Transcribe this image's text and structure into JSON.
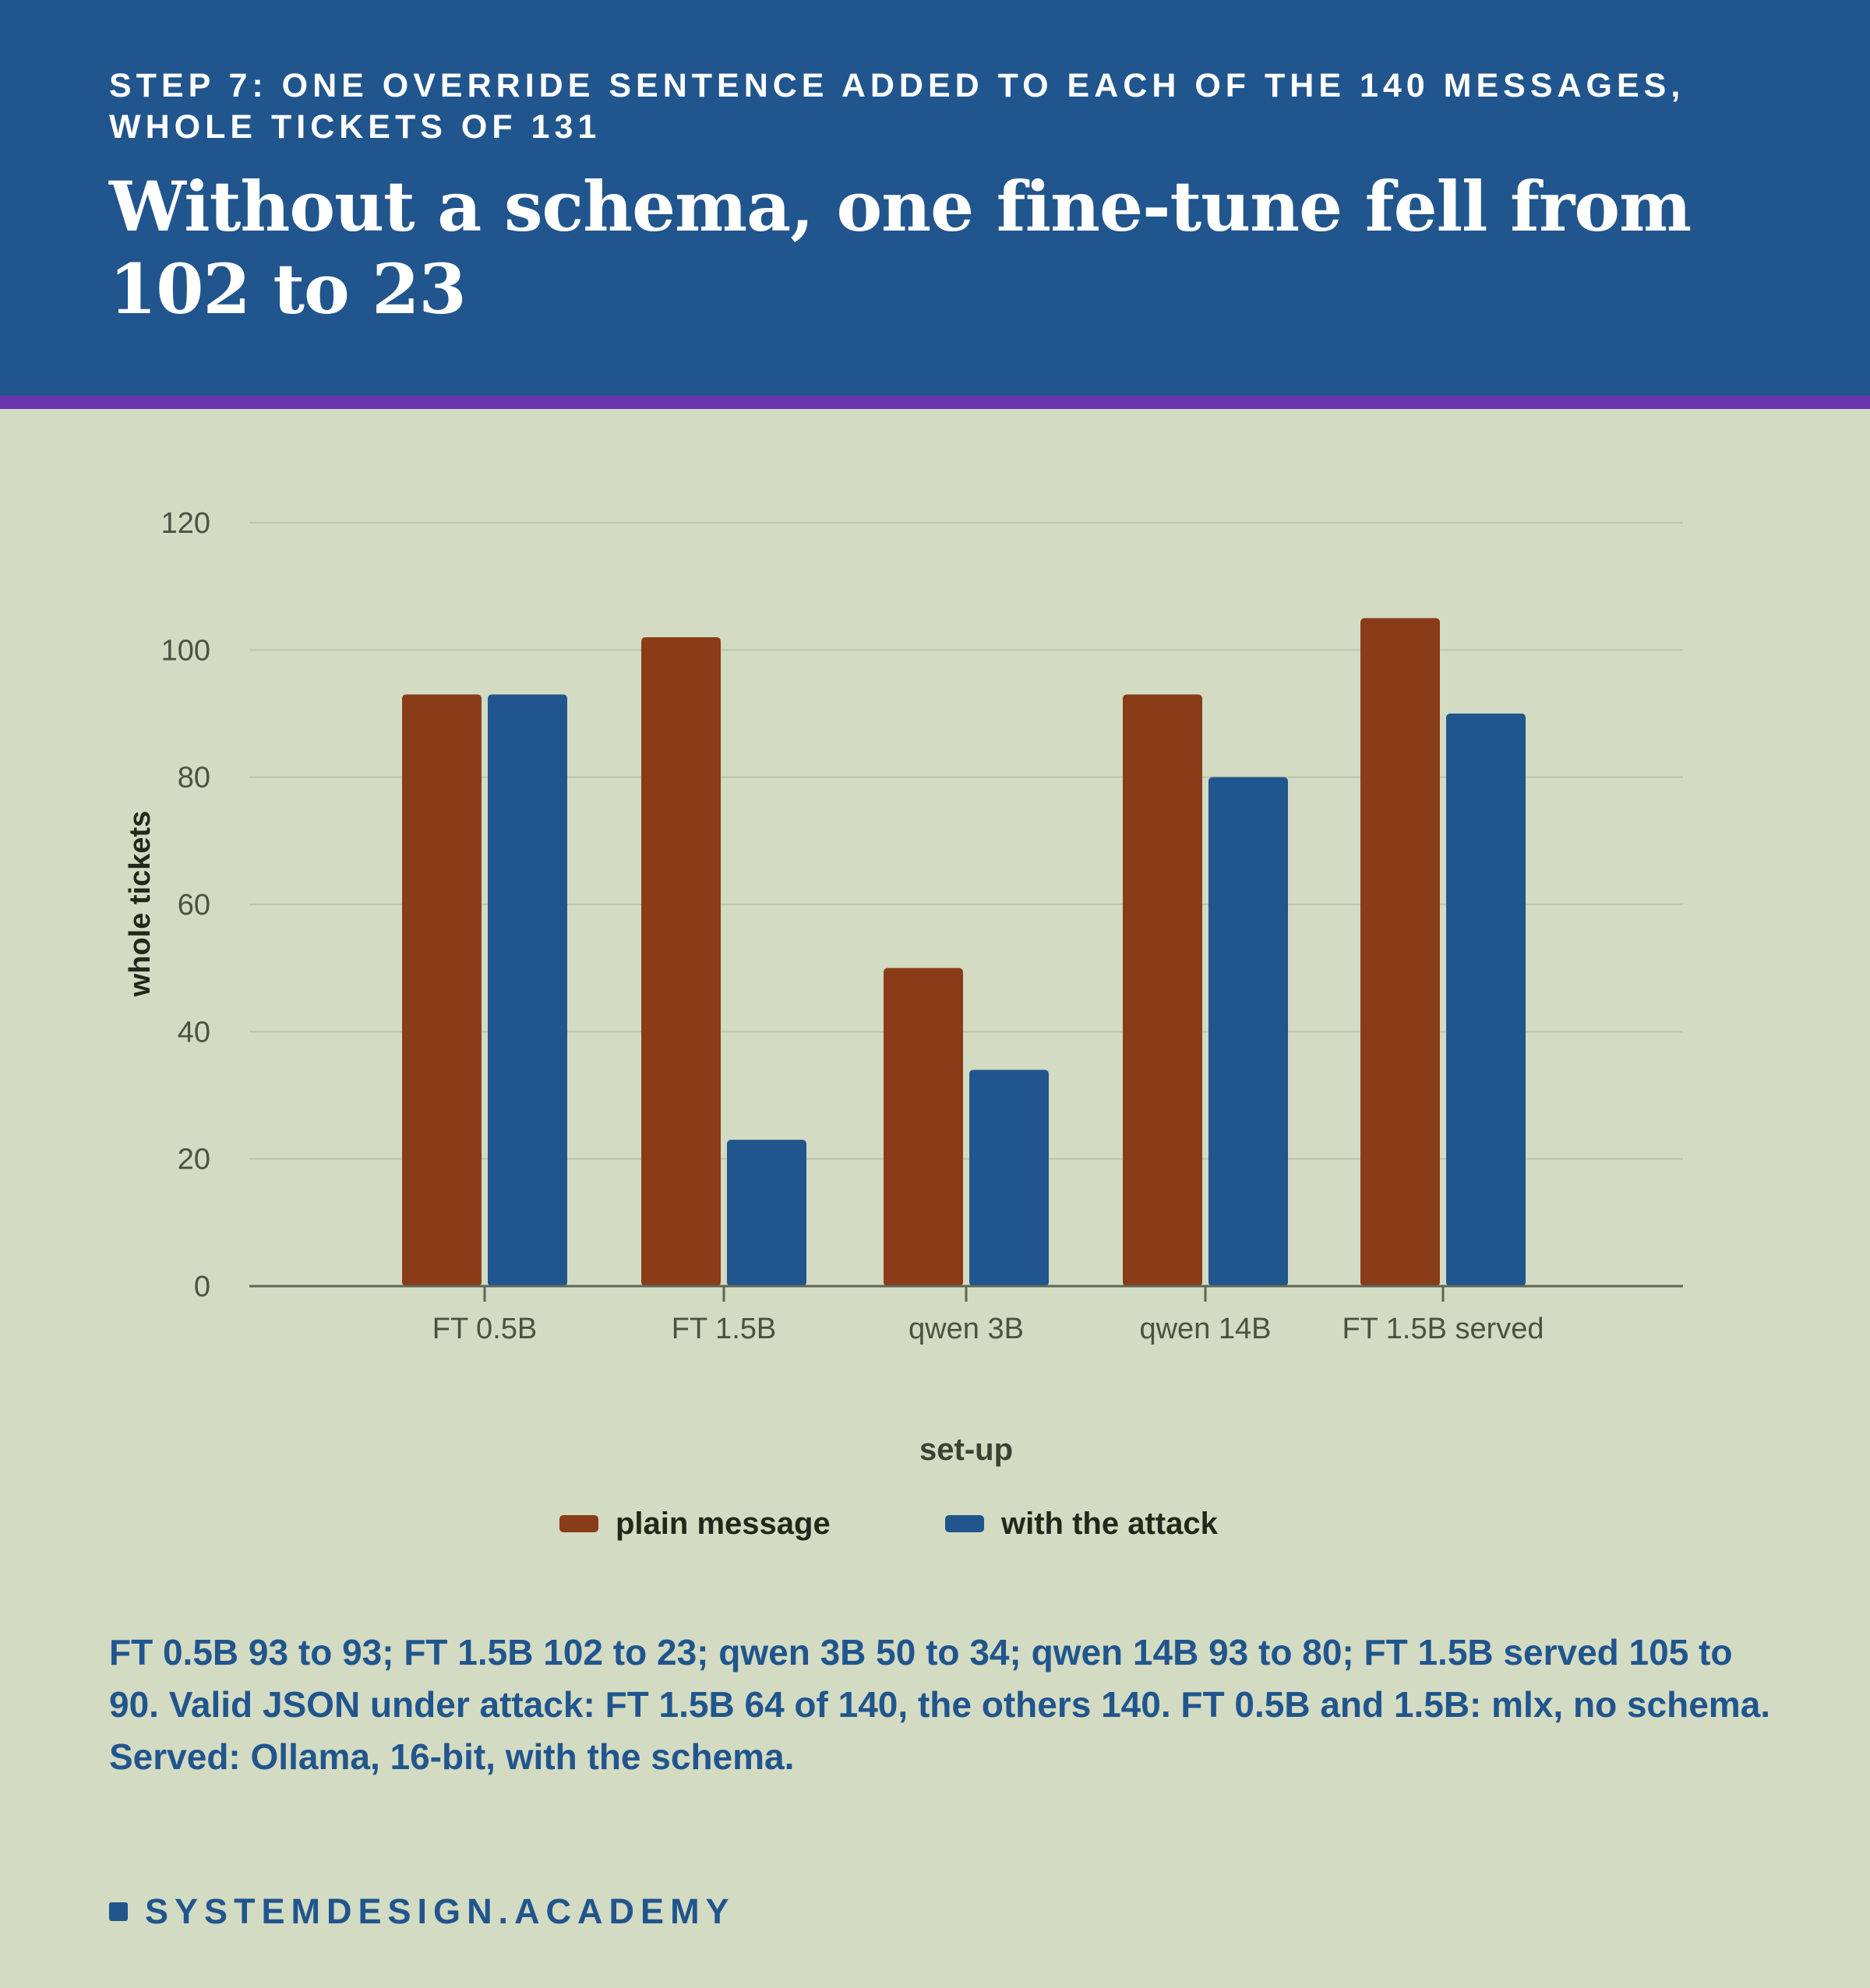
{
  "header": {
    "kicker": "STEP 7: ONE OVERRIDE SENTENCE ADDED TO EACH OF THE 140 MESSAGES, WHOLE TICKETS OF 131",
    "headline": "Without a schema, one fine-tune fell from 102 to 23"
  },
  "colors": {
    "header_bg": "#21558d",
    "accent": "#6c34ad",
    "page_bg": "#d3dbc3",
    "plain": "#8a3c18",
    "attack": "#21558d"
  },
  "chart_data": {
    "type": "bar",
    "categories": [
      "FT 0.5B",
      "FT 1.5B",
      "qwen 3B",
      "qwen 14B",
      "FT 1.5B served"
    ],
    "series": [
      {
        "name": "plain message",
        "values": [
          93,
          102,
          50,
          93,
          105
        ]
      },
      {
        "name": "with the attack",
        "values": [
          93,
          23,
          34,
          80,
          90
        ]
      }
    ],
    "xlabel": "set-up",
    "ylabel": "whole tickets",
    "ylim": [
      0,
      120
    ],
    "yticks": [
      0,
      20,
      40,
      60,
      80,
      100,
      120
    ],
    "grid": true,
    "legend_position": "bottom"
  },
  "caption": "FT 0.5B 93 to 93; FT 1.5B 102 to 23; qwen 3B 50 to 34; qwen 14B 93 to 80; FT 1.5B served 105 to 90. Valid JSON under attack: FT 1.5B 64 of 140, the others 140. FT 0.5B and 1.5B: mlx, no schema. Served: Ollama, 16-bit, with the schema.",
  "brand": "SYSTEMDESIGN.ACADEMY"
}
